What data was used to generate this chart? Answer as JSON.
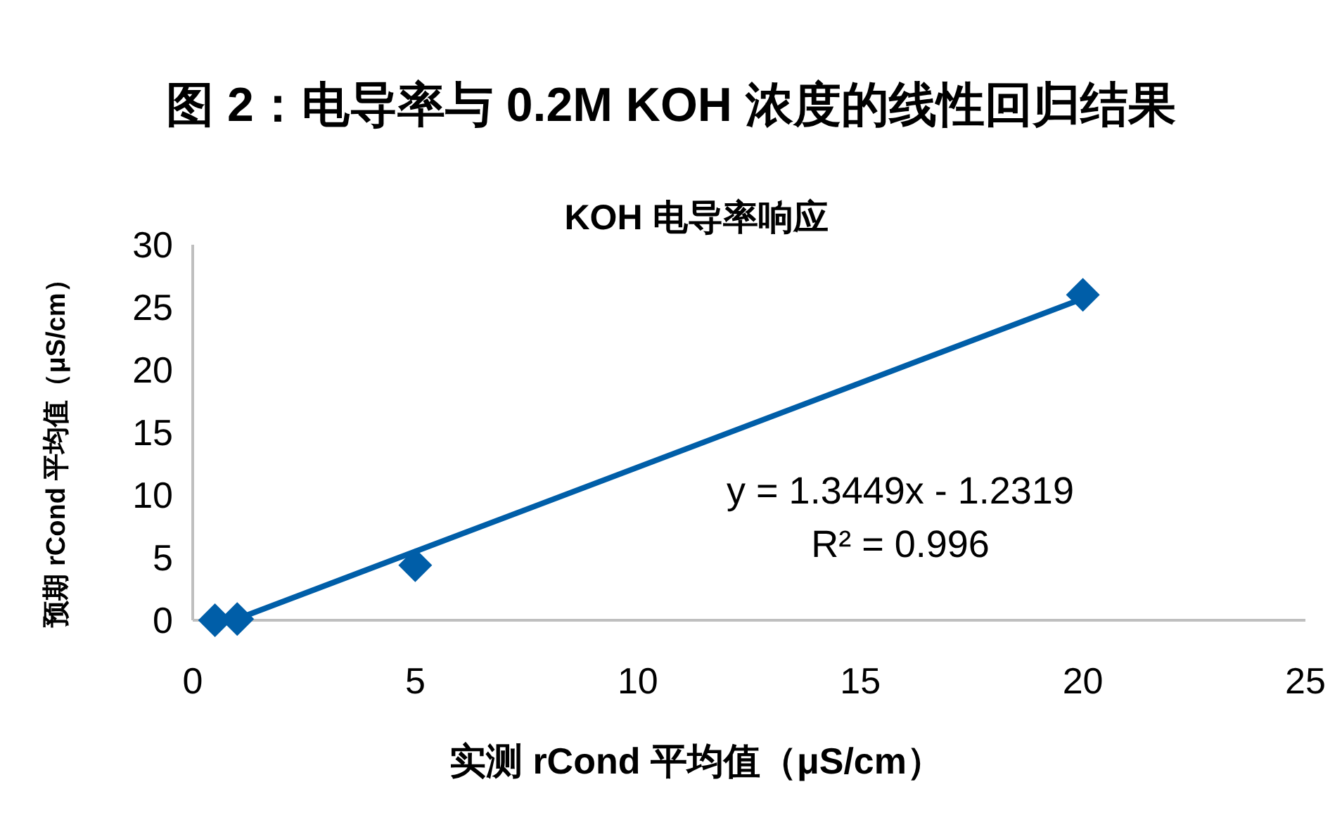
{
  "chart_data": {
    "type": "scatter",
    "title": "图 2：电导率与 0.2M KOH 浓度的线性回归结果",
    "subtitle": "KOH 电导率响应",
    "xlabel": "实测 rCond 平均值（μS/cm）",
    "ylabel": "预期 rCond 平均值（μS/cm）",
    "series": [
      {
        "color": "#005ea8",
        "marker": "diamond",
        "x": [
          0.5,
          1,
          5,
          20
        ],
        "values": [
          0,
          0.1,
          4.4,
          26
        ]
      },
      {
        "type": "line",
        "color": "#005ea8",
        "marker": "none",
        "line_style": "solid",
        "x": [
          0.92,
          20
        ],
        "values": [
          0,
          25.7
        ]
      }
    ],
    "xlim": [
      0,
      25
    ],
    "xticks": [
      0,
      5,
      10,
      15,
      20,
      25
    ],
    "ylim": [
      0,
      30
    ],
    "yticks": [
      0,
      5,
      10,
      15,
      20,
      25,
      30
    ],
    "grid": false,
    "annotations": [
      "y = 1.3449x - 1.2319",
      "R² = 0.996"
    ]
  }
}
